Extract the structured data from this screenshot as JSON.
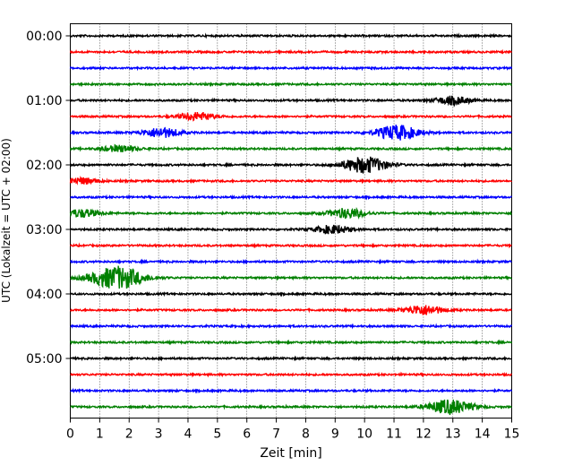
{
  "chart_data": {
    "type": "line",
    "title": "",
    "xlabel": "Zeit  [min]",
    "ylabel": "UTC (Lokalzeit = UTC + 02:00)",
    "xlim": [
      0,
      15
    ],
    "x_ticks": [
      "0",
      "1",
      "2",
      "3",
      "4",
      "5",
      "6",
      "7",
      "8",
      "9",
      "10",
      "11",
      "12",
      "13",
      "14",
      "15"
    ],
    "y_tick_labels": [
      "00:00",
      "01:00",
      "02:00",
      "03:00",
      "04:00",
      "05:00"
    ],
    "grid": "vertical dotted",
    "trace_interval_min": 15,
    "colors": [
      "#000000",
      "#ff0000",
      "#0000ff",
      "#008000"
    ],
    "traces": [
      {
        "time": "00:00",
        "events": []
      },
      {
        "time": "00:15",
        "events": []
      },
      {
        "time": "00:30",
        "events": []
      },
      {
        "time": "00:45",
        "events": []
      },
      {
        "time": "01:00",
        "events": [
          {
            "center_min": 13.0,
            "amplitude": 0.25
          }
        ]
      },
      {
        "time": "01:15",
        "events": [
          {
            "center_min": 4.3,
            "amplitude": 0.25
          }
        ]
      },
      {
        "time": "01:30",
        "events": [
          {
            "center_min": 3.1,
            "amplitude": 0.3
          },
          {
            "center_min": 11.1,
            "amplitude": 0.45
          }
        ]
      },
      {
        "time": "01:45",
        "events": [
          {
            "center_min": 1.7,
            "amplitude": 0.2
          }
        ]
      },
      {
        "time": "02:00",
        "events": [
          {
            "center_min": 10.0,
            "amplitude": 0.5
          }
        ]
      },
      {
        "time": "02:15",
        "events": [
          {
            "center_min": 0.4,
            "amplitude": 0.2
          }
        ]
      },
      {
        "time": "02:30",
        "events": []
      },
      {
        "time": "02:45",
        "events": [
          {
            "center_min": 0.4,
            "amplitude": 0.25
          },
          {
            "center_min": 9.4,
            "amplitude": 0.3
          }
        ]
      },
      {
        "time": "03:00",
        "events": [
          {
            "center_min": 8.9,
            "amplitude": 0.25
          }
        ]
      },
      {
        "time": "03:15",
        "events": []
      },
      {
        "time": "03:30",
        "events": []
      },
      {
        "time": "03:45",
        "events": [
          {
            "center_min": 1.6,
            "amplitude": 0.7
          }
        ]
      },
      {
        "time": "04:00",
        "events": []
      },
      {
        "time": "04:15",
        "events": [
          {
            "center_min": 12.0,
            "amplitude": 0.3
          }
        ]
      },
      {
        "time": "04:30",
        "events": []
      },
      {
        "time": "04:45",
        "events": []
      },
      {
        "time": "05:00",
        "events": []
      },
      {
        "time": "05:15",
        "events": []
      },
      {
        "time": "05:30",
        "events": []
      },
      {
        "time": "05:45",
        "events": [
          {
            "center_min": 12.9,
            "amplitude": 0.45
          }
        ]
      }
    ]
  }
}
